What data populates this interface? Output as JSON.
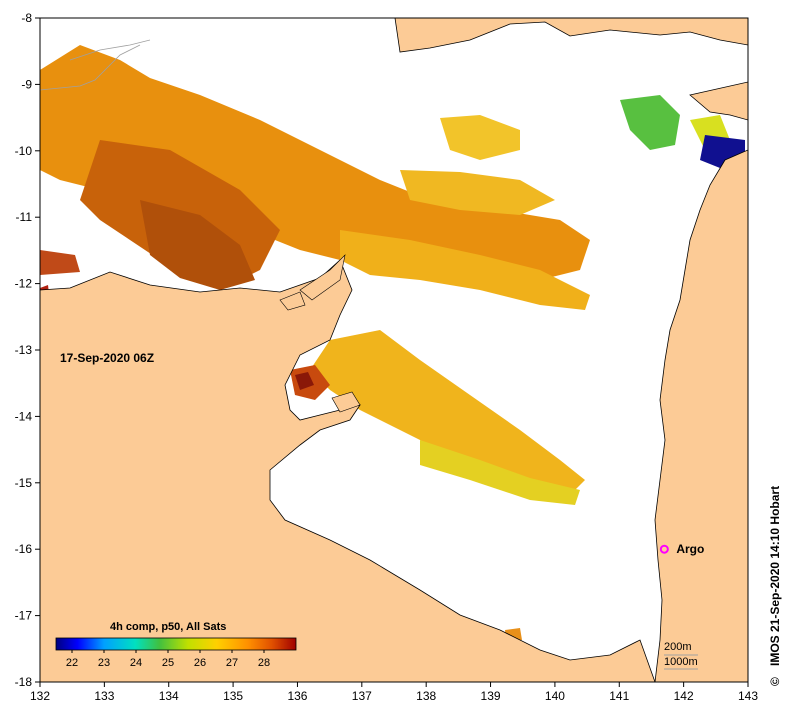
{
  "map": {
    "timestamp": "17-Sep-2020 06Z",
    "credit": "IMOS 21-Sep-2020 14:10 Hobart",
    "copyright_symbol": "©",
    "longitude_ticks": [
      "132",
      "133",
      "134",
      "135",
      "136",
      "137",
      "138",
      "139",
      "140",
      "141",
      "142",
      "143"
    ],
    "latitude_ticks": [
      "-8",
      "-9",
      "-10",
      "-11",
      "-12",
      "-13",
      "-14",
      "-15",
      "-16",
      "-17",
      "-18"
    ],
    "argo_label": "Argo",
    "argo_position": {
      "lon": 141.7,
      "lat": -16.0
    },
    "contours": {
      "first": "200m",
      "second": "1000m"
    },
    "colors": {
      "land": "#fccb96",
      "ocean_no_data": "#ffffff",
      "argo_marker": "#ff00ff",
      "contour_line": "#a0a0a0"
    }
  },
  "legend": {
    "title": "4h comp, p50, All Sats",
    "ticks": [
      "22",
      "23",
      "24",
      "25",
      "26",
      "27",
      "28"
    ],
    "min": 21.5,
    "max": 29.0,
    "stops": [
      "#00007f",
      "#0000ff",
      "#00a0ff",
      "#00e0c0",
      "#40c040",
      "#c0e000",
      "#ffd000",
      "#ff9000",
      "#e05000",
      "#a00000"
    ]
  }
}
